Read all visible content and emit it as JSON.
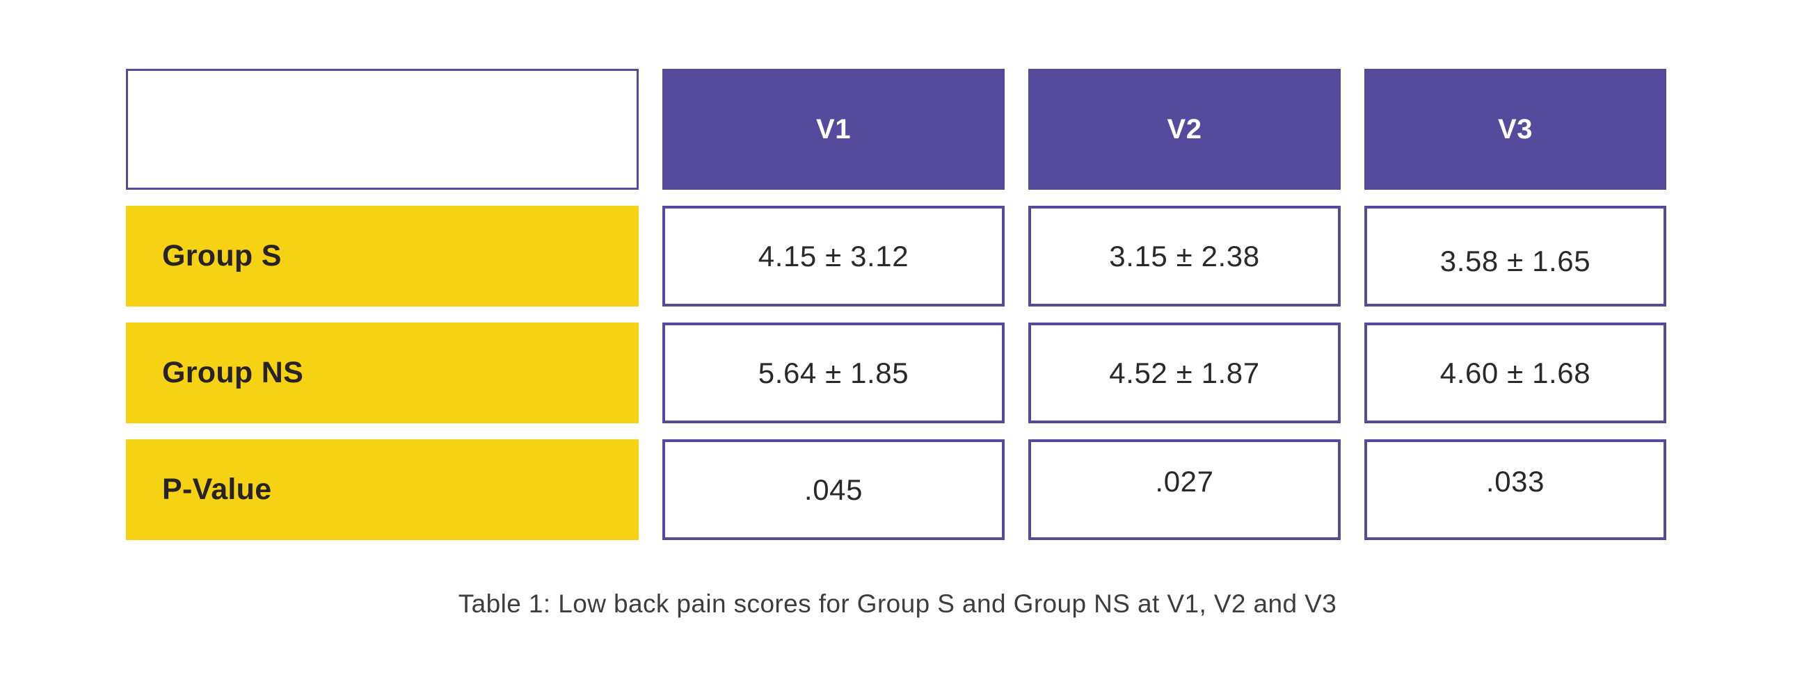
{
  "table": {
    "caption": "Table 1: Low back pain scores for Group S and Group NS at V1, V2 and V3",
    "columns": [
      "V1",
      "V2",
      "V3"
    ],
    "rows": [
      {
        "label": "Group S",
        "values": [
          "4.15 ± 3.12",
          "3.15 ± 2.38",
          "3.58 ± 1.65"
        ]
      },
      {
        "label": "Group NS",
        "values": [
          "5.64 ± 1.85",
          "4.52 ± 1.87",
          "4.60 ± 1.68"
        ]
      },
      {
        "label": "P-Value",
        "values": [
          ".045",
          ".027",
          ".033"
        ]
      }
    ]
  },
  "colors": {
    "header_purple": "#554A9B",
    "row_yellow": "#F6D214",
    "cell_border_purple": "#554A9B",
    "header_text": "#FFFFFF",
    "label_text": "#272324",
    "value_text": "#2B2829",
    "caption_text": "#3F3C3D",
    "background": "#FFFFFF"
  },
  "chart_data": {
    "type": "table",
    "title": "Table 1: Low back pain scores for Group S and Group NS at V1, V2 and V3",
    "columns": [
      "",
      "V1",
      "V2",
      "V3"
    ],
    "rows": [
      [
        "Group S",
        "4.15 ± 3.12",
        "3.15 ± 2.38",
        "3.58 ± 1.65"
      ],
      [
        "Group NS",
        "5.64 ± 1.85",
        "4.52 ± 1.87",
        "4.60 ± 1.68"
      ],
      [
        "P-Value",
        ".045",
        ".027",
        ".033"
      ]
    ],
    "series": [
      {
        "name": "Group S",
        "visits": [
          "V1",
          "V2",
          "V3"
        ],
        "mean": [
          4.15,
          3.15,
          3.58
        ],
        "sd": [
          3.12,
          2.38,
          1.65
        ]
      },
      {
        "name": "Group NS",
        "visits": [
          "V1",
          "V2",
          "V3"
        ],
        "mean": [
          5.64,
          4.52,
          4.6
        ],
        "sd": [
          1.85,
          1.87,
          1.68
        ]
      },
      {
        "name": "P-Value",
        "visits": [
          "V1",
          "V2",
          "V3"
        ],
        "values": [
          0.045,
          0.027,
          0.033
        ]
      }
    ]
  }
}
